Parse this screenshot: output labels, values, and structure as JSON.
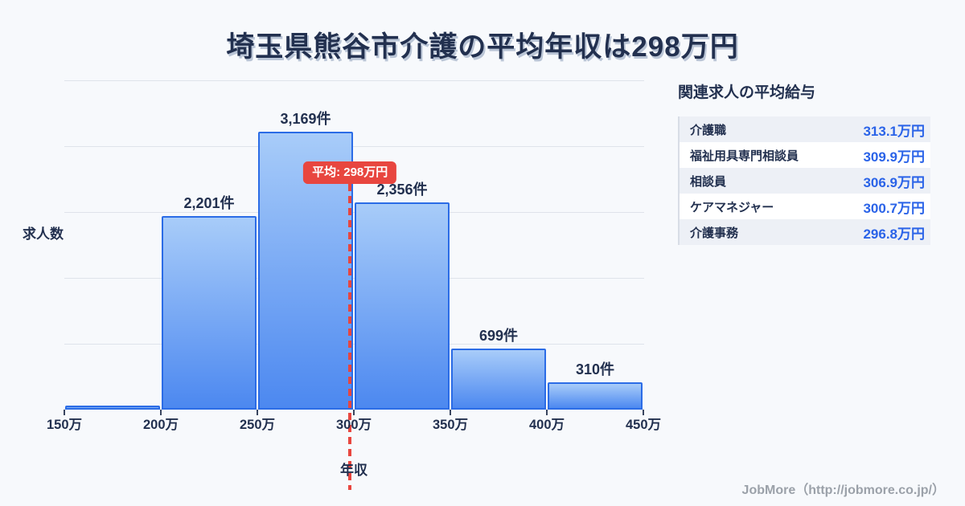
{
  "title": "埼玉県熊谷市介護の平均年収は298万円",
  "chart_data": {
    "type": "bar",
    "title": "埼玉県熊谷市介護の平均年収は298万円",
    "xlabel": "年収",
    "ylabel": "求人数",
    "bin_edges": [
      150,
      200,
      250,
      300,
      350,
      400,
      450
    ],
    "bin_edge_labels": [
      "150万",
      "200万",
      "250万",
      "300万",
      "350万",
      "400万",
      "450万"
    ],
    "values": [
      35,
      2201,
      3169,
      2356,
      699,
      310
    ],
    "bar_labels": [
      "",
      "2,201件",
      "3,169件",
      "2,356件",
      "699件",
      "310件"
    ],
    "ylim": [
      0,
      3750
    ],
    "grid_step": 750,
    "grid": true,
    "legend": "none",
    "mean": {
      "value": 298,
      "label": "平均: 298万円"
    }
  },
  "side_panel": {
    "heading": "関連求人の平均給与",
    "rows": [
      {
        "label": "介護職",
        "value": "313.1万円"
      },
      {
        "label": "福祉用具専門相談員",
        "value": "309.9万円"
      },
      {
        "label": "相談員",
        "value": "306.9万円"
      },
      {
        "label": "ケアマネジャー",
        "value": "300.7万円"
      },
      {
        "label": "介護事務",
        "value": "296.8万円"
      }
    ]
  },
  "footer": {
    "credit": "JobMore（http://jobmore.co.jp/）"
  },
  "colors": {
    "background": "#f7f9fc",
    "ink": "#22304f",
    "accent_blue": "#2b6ce6",
    "bar_gradient_top": "#a8ccf9",
    "bar_gradient_bottom": "#4c88f0",
    "value_blue": "#2a63e8",
    "mean_red": "#e8463f"
  }
}
